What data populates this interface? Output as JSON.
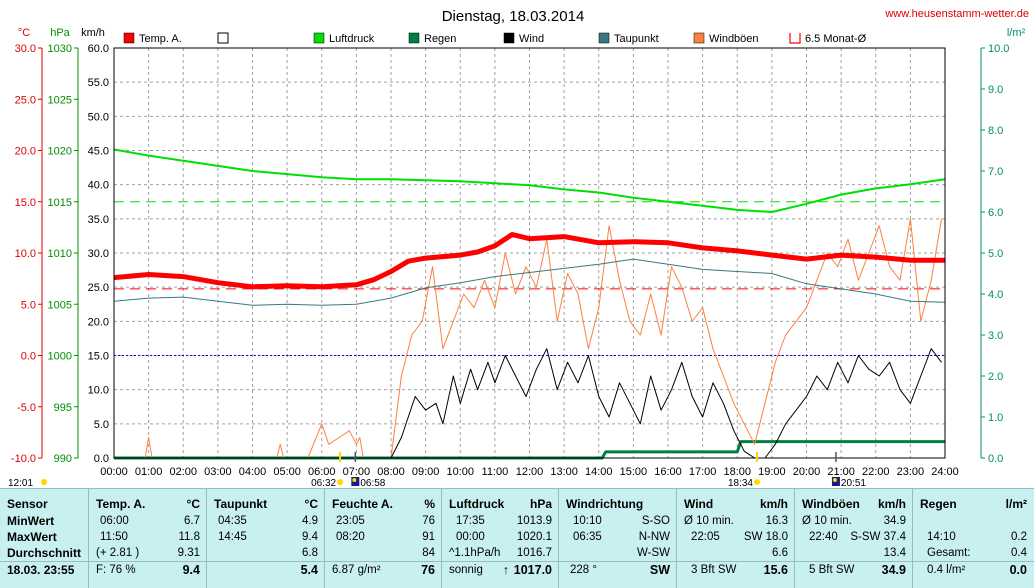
{
  "header": {
    "title": "Dienstag, 18.03.2014",
    "website": "www.heusenstamm-wetter.de"
  },
  "chart_data": {
    "type": "line",
    "title": "Dienstag, 18.03.2014",
    "x_ticks": [
      "00:00",
      "01:00",
      "02:00",
      "03:00",
      "04:00",
      "05:00",
      "06:00",
      "07:00",
      "08:00",
      "09:00",
      "10:00",
      "11:00",
      "12:00",
      "13:00",
      "14:00",
      "15:00",
      "16:00",
      "17:00",
      "18:00",
      "19:00",
      "20:00",
      "21:00",
      "22:00",
      "23:00",
      "24:00"
    ],
    "axes": {
      "temp": {
        "unit": "°C",
        "range": [
          -10,
          30
        ],
        "ticks": [
          "30.0",
          "25.0",
          "20.0",
          "15.0",
          "10.0",
          "5.0",
          "0.0",
          "-5.0",
          "-10.0"
        ]
      },
      "pressure": {
        "unit": "hPa",
        "range": [
          990,
          1030
        ],
        "ticks": [
          "1030",
          "1025",
          "1020",
          "1015",
          "1010",
          "1005",
          "1000",
          "995",
          "990"
        ]
      },
      "wind": {
        "unit": "km/h",
        "range": [
          0,
          60
        ],
        "ticks": [
          "60.0",
          "55.0",
          "50.0",
          "45.0",
          "40.0",
          "35.0",
          "30.0",
          "25.0",
          "20.0",
          "15.0",
          "10.0",
          "5.0",
          "0.0"
        ]
      },
      "rain": {
        "unit": "l/m²",
        "range": [
          0,
          10
        ],
        "ticks": [
          "10.0",
          "9.0",
          "8.0",
          "7.0",
          "6.0",
          "5.0",
          "4.0",
          "3.0",
          "2.0",
          "1.0",
          "0.0"
        ]
      }
    },
    "grid": true,
    "legend_position": "top",
    "legend": [
      {
        "label": "Temp. A.",
        "color": "#ff0000",
        "style": "filled"
      },
      {
        "label": "",
        "color": "#000000",
        "style": "hollow"
      },
      {
        "label": "Luftdruck",
        "color": "#00e000",
        "style": "filled"
      },
      {
        "label": "Regen",
        "color": "#008040",
        "style": "filled"
      },
      {
        "label": "Wind",
        "color": "#000000",
        "style": "filled"
      },
      {
        "label": "Taupunkt",
        "color": "#3a7880",
        "style": "filled"
      },
      {
        "label": "Windböen",
        "color": "#ff8040",
        "style": "filled"
      },
      {
        "label": "6.5 Monat-Ø",
        "color": "#ff0000",
        "style": "bracket"
      }
    ],
    "reference_lines": [
      {
        "axis": "pressure",
        "value": 1015,
        "color": "#00e000"
      },
      {
        "axis": "temp",
        "value": 6.5,
        "color": "#ff0000"
      },
      {
        "axis": "temp",
        "value": 0,
        "color": "#0000ff"
      }
    ],
    "sun_markers": [
      {
        "label": "12:01",
        "x": 0.0
      },
      {
        "label": "06:32",
        "x": 6.53
      },
      {
        "label": "06:58",
        "x": 6.97
      },
      {
        "label": "18:34",
        "x": 18.57
      },
      {
        "label": "20:51",
        "x": 20.85
      }
    ],
    "series": [
      {
        "name": "Temp. A.",
        "axis": "temp",
        "color": "#ff0000",
        "width": 5,
        "x": [
          0,
          1,
          2,
          3,
          4,
          5,
          6,
          7,
          7.5,
          8,
          8.5,
          9,
          10,
          10.5,
          11,
          11.5,
          12,
          13,
          14,
          15,
          16,
          17,
          18,
          19,
          20,
          21,
          22,
          23,
          24
        ],
        "values": [
          7.6,
          7.9,
          7.7,
          7.1,
          6.7,
          6.8,
          6.7,
          6.9,
          7.4,
          8.2,
          9.2,
          9.5,
          9.8,
          10.1,
          10.7,
          11.8,
          11.4,
          11.6,
          11.0,
          11.1,
          11.0,
          10.5,
          10.2,
          9.8,
          9.4,
          9.8,
          9.6,
          9.3,
          9.3
        ]
      },
      {
        "name": "Taupunkt",
        "axis": "temp",
        "color": "#3a7880",
        "width": 1,
        "x": [
          0,
          1,
          2,
          3,
          4,
          5,
          6,
          7,
          8,
          9,
          10,
          11,
          12,
          13,
          14,
          15,
          16,
          17,
          18,
          19,
          20,
          21,
          22,
          23,
          24
        ],
        "values": [
          5.3,
          5.6,
          5.7,
          5.3,
          4.9,
          5.0,
          4.9,
          5.0,
          5.6,
          6.6,
          7.1,
          7.7,
          8.1,
          8.5,
          8.9,
          9.4,
          8.9,
          8.4,
          8.2,
          8.0,
          7.0,
          6.5,
          6.0,
          5.3,
          5.2
        ]
      },
      {
        "name": "Luftdruck",
        "axis": "pressure",
        "color": "#00e000",
        "width": 2,
        "x": [
          0,
          1,
          2,
          3,
          4,
          5,
          6,
          7,
          8,
          9,
          10,
          11,
          12,
          13,
          14,
          15,
          16,
          17,
          18,
          19,
          20,
          21,
          22,
          23,
          24
        ],
        "values": [
          1020.1,
          1019.5,
          1019.0,
          1018.5,
          1018.0,
          1017.7,
          1017.4,
          1017.2,
          1017.2,
          1017.1,
          1017.0,
          1016.8,
          1016.6,
          1016.2,
          1015.9,
          1015.4,
          1015.0,
          1014.6,
          1014.2,
          1014.0,
          1014.8,
          1015.7,
          1016.3,
          1016.7,
          1017.2
        ]
      },
      {
        "name": "Wind",
        "axis": "wind",
        "color": "#000000",
        "width": 1,
        "x": [
          0,
          7.6,
          8.0,
          8.3,
          8.5,
          8.7,
          9.0,
          9.3,
          9.5,
          9.8,
          10.0,
          10.3,
          10.5,
          10.8,
          11.0,
          11.3,
          11.6,
          11.9,
          12.2,
          12.5,
          12.8,
          13.1,
          13.4,
          13.7,
          14.0,
          14.3,
          14.6,
          14.9,
          15.2,
          15.5,
          15.8,
          16.1,
          16.4,
          16.7,
          17.0,
          17.3,
          17.6,
          17.9,
          18.2,
          18.5,
          18.8,
          19.1,
          19.4,
          19.7,
          20.0,
          20.3,
          20.6,
          20.9,
          21.2,
          21.5,
          21.8,
          22.1,
          22.4,
          22.7,
          23.0,
          23.3,
          23.6,
          23.9
        ],
        "values": [
          0,
          0,
          0,
          3,
          6,
          9,
          7,
          8,
          5,
          12,
          8,
          13,
          10,
          14,
          11,
          15,
          12,
          9,
          13,
          16,
          10,
          14,
          11,
          15,
          9,
          6,
          11,
          8,
          5,
          12,
          7,
          10,
          14,
          9,
          6,
          11,
          8,
          4,
          1,
          0,
          0,
          2,
          5,
          7,
          9,
          12,
          10,
          14,
          11,
          15,
          13,
          12,
          14,
          10,
          8,
          12,
          16,
          14
        ]
      },
      {
        "name": "Windböen",
        "axis": "wind",
        "color": "#ff8040",
        "width": 1,
        "x": [
          0,
          0.9,
          1.0,
          1.1,
          4.7,
          4.8,
          4.9,
          5.6,
          6.0,
          6.2,
          6.5,
          6.8,
          7.0,
          7.1,
          7.2,
          8.0,
          8.3,
          8.6,
          8.9,
          9.2,
          9.5,
          9.8,
          10.1,
          10.4,
          10.7,
          11.0,
          11.3,
          11.6,
          11.9,
          12.2,
          12.5,
          12.8,
          13.1,
          13.4,
          13.7,
          14.0,
          14.3,
          14.6,
          14.9,
          15.2,
          15.5,
          15.8,
          16.1,
          16.4,
          16.7,
          17.0,
          17.3,
          17.6,
          17.9,
          18.2,
          18.5,
          18.8,
          19.1,
          19.4,
          19.7,
          20.0,
          20.3,
          20.6,
          20.9,
          21.2,
          21.5,
          21.8,
          22.1,
          22.4,
          22.7,
          23.0,
          23.3,
          23.6,
          23.9
        ],
        "values": [
          0,
          0,
          3,
          0,
          0,
          2,
          0,
          0,
          5,
          2,
          3,
          4,
          2,
          3,
          0,
          0,
          12,
          18,
          20,
          28,
          16,
          20,
          24,
          22,
          26,
          22,
          30,
          24,
          28,
          25,
          32,
          20,
          27,
          24,
          16,
          22,
          34,
          26,
          20,
          18,
          24,
          18,
          28,
          25,
          20,
          22,
          16,
          12,
          8,
          5,
          2,
          8,
          14,
          18,
          20,
          22,
          26,
          30,
          28,
          32,
          26,
          30,
          34,
          28,
          26,
          35,
          20,
          26,
          35
        ]
      },
      {
        "name": "Regen",
        "axis": "rain",
        "color": "#008040",
        "width": 3,
        "x": [
          0,
          14.1,
          14.2,
          18.0,
          18.1,
          24
        ],
        "values": [
          0,
          0,
          0.15,
          0.15,
          0.4,
          0.4
        ]
      }
    ]
  },
  "stats": {
    "sensor": {
      "title": "Sensor",
      "rows": [
        "MinWert",
        "MaxWert",
        "Durchschnitt"
      ],
      "footer": "18.03. 23:55"
    },
    "temp": {
      "title": "Temp. A.",
      "unit": "°C",
      "rows": [
        [
          "06:00",
          "6.7"
        ],
        [
          "11:50",
          "11.8"
        ],
        [
          "(+ 2.81 )",
          "9.31"
        ]
      ],
      "footer": [
        "F: 76 %",
        "9.4"
      ]
    },
    "dew": {
      "title": "Taupunkt",
      "unit": "°C",
      "rows": [
        [
          "04:35",
          "4.9"
        ],
        [
          "14:45",
          "9.4"
        ],
        [
          "",
          "6.8"
        ]
      ],
      "footer": [
        "",
        "5.4"
      ]
    },
    "humidity": {
      "title": "Feuchte A.",
      "unit": "%",
      "rows": [
        [
          "23:05",
          "76"
        ],
        [
          "08:20",
          "91"
        ],
        [
          "",
          "84"
        ]
      ],
      "footer": [
        "6.87 g/m²",
        "76"
      ]
    },
    "pressure": {
      "title": "Luftdruck",
      "unit": "hPa",
      "rows": [
        [
          "17:35",
          "1013.9"
        ],
        [
          "00:00",
          "1020.1"
        ],
        [
          "^1.1hPa/h",
          "1016.7"
        ]
      ],
      "footer": [
        "sonnig",
        "1017.0"
      ],
      "trend_arrow": "↑"
    },
    "winddir": {
      "title": "Windrichtung",
      "rows": [
        [
          "10:10",
          "S-SO"
        ],
        [
          "06:35",
          "N-NW"
        ],
        [
          "",
          "W-SW"
        ]
      ],
      "footer": [
        "228 °",
        "SW"
      ]
    },
    "wind": {
      "title": "Wind",
      "unit": "km/h",
      "rows": [
        [
          "Ø 10 min.",
          "16.3"
        ],
        [
          "22:05",
          "SW 18.0"
        ],
        [
          "",
          "6.6"
        ]
      ],
      "footer": [
        "3 Bft SW",
        "15.6"
      ]
    },
    "gusts": {
      "title": "Windböen",
      "unit": "km/h",
      "rows": [
        [
          "Ø 10 min.",
          "34.9"
        ],
        [
          "22:40",
          "S-SW 37.4"
        ],
        [
          "",
          "13.4"
        ]
      ],
      "footer": [
        "5 Bft SW",
        "34.9"
      ]
    },
    "rain": {
      "title": "Regen",
      "unit": "l/m²",
      "rows": [
        [
          "",
          ""
        ],
        [
          "14:10",
          "0.2"
        ],
        [
          "Gesamt:",
          "0.4"
        ]
      ],
      "footer": [
        "0.4 l/m²",
        "0.0"
      ]
    }
  }
}
